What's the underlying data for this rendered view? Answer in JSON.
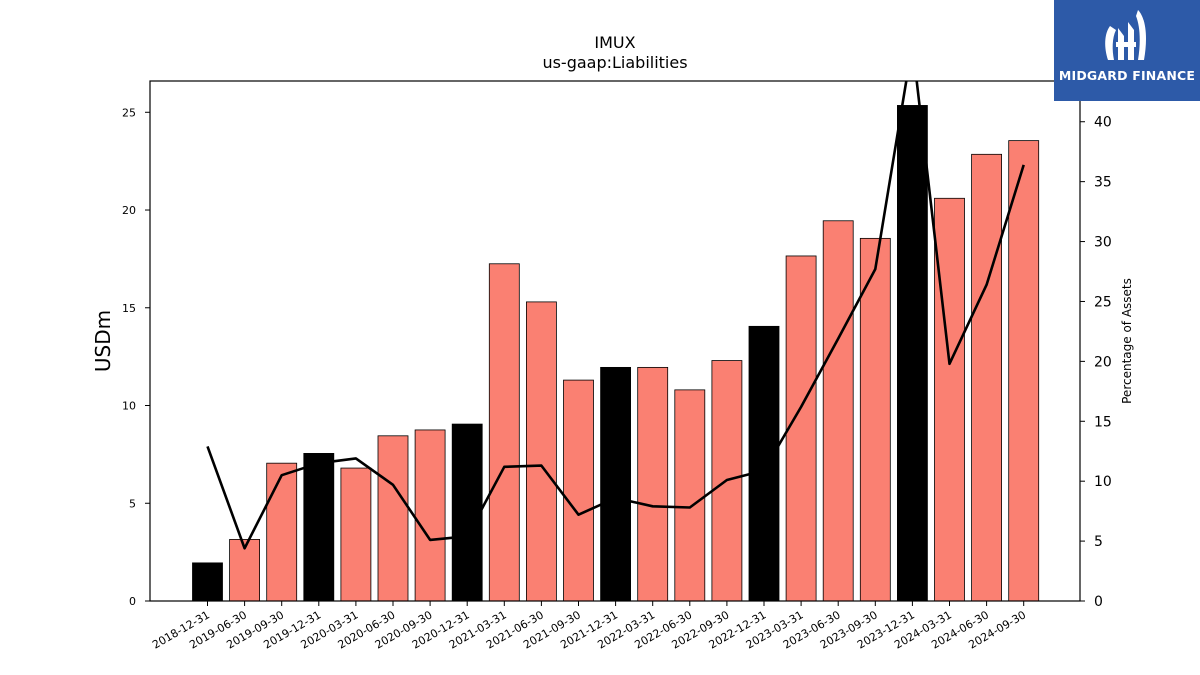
{
  "chart_data": {
    "type": "bar",
    "title": "IMUX",
    "subtitle": "us-gaap:Liabilities",
    "ylabel": "USDm",
    "y2label": "Percentage of Assets",
    "ylim": [
      0,
      26.6
    ],
    "y2lim": [
      0,
      43.4
    ],
    "yticks": [
      0,
      5,
      10,
      15,
      20,
      25
    ],
    "y2ticks": [
      0,
      5,
      10,
      15,
      20,
      25,
      30,
      35,
      40
    ],
    "grid": false,
    "categories": [
      "2018-12-31",
      "2019-06-30",
      "2019-09-30",
      "2019-12-31",
      "2020-03-31",
      "2020-06-30",
      "2020-09-30",
      "2020-12-31",
      "2021-03-31",
      "2021-06-30",
      "2021-09-30",
      "2021-12-31",
      "2022-03-31",
      "2022-06-30",
      "2022-09-30",
      "2022-12-31",
      "2023-03-31",
      "2023-06-30",
      "2023-09-30",
      "2023-12-31",
      "2024-03-31",
      "2024-06-30",
      "2024-09-30"
    ],
    "series": [
      {
        "type": "bar",
        "values": [
          1.95,
          3.15,
          7.05,
          7.55,
          6.8,
          8.45,
          8.75,
          9.05,
          17.25,
          15.3,
          11.3,
          11.95,
          11.95,
          10.8,
          12.3,
          14.05,
          17.65,
          19.45,
          18.55,
          25.35,
          20.6,
          22.85,
          23.55
        ],
        "annual": [
          true,
          false,
          false,
          true,
          false,
          false,
          false,
          true,
          false,
          false,
          false,
          true,
          false,
          false,
          false,
          true,
          false,
          false,
          false,
          true,
          false,
          false,
          false
        ]
      },
      {
        "type": "line",
        "axis": "secondary",
        "values": [
          12.9,
          4.4,
          10.5,
          11.5,
          11.9,
          9.7,
          5.1,
          5.4,
          11.2,
          11.3,
          7.2,
          8.6,
          7.9,
          7.8,
          10.1,
          10.9,
          16.2,
          21.9,
          27.7,
          46.5,
          19.8,
          26.4,
          36.4
        ]
      }
    ],
    "colors": {
      "bar_annual": "#000000",
      "bar_quarter": "#fa8072",
      "line": "#000000"
    }
  },
  "logo": {
    "text": "MIDGARD FINANCE",
    "color": "#2d5aa8"
  }
}
